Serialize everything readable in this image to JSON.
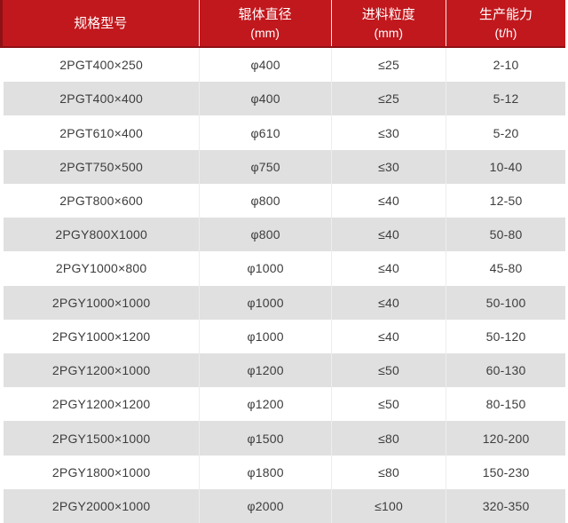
{
  "chart_data": {
    "type": "table",
    "title": "",
    "columns": [
      {
        "label": "规格型号",
        "unit": ""
      },
      {
        "label": "辊体直径",
        "unit": "(mm)"
      },
      {
        "label": "进料粒度",
        "unit": "(mm)"
      },
      {
        "label": "生产能力",
        "unit": "(t/h)"
      }
    ],
    "rows": [
      [
        "2PGT400×250",
        "φ400",
        "≤25",
        "2-10"
      ],
      [
        "2PGT400×400",
        "φ400",
        "≤25",
        "5-12"
      ],
      [
        "2PGT610×400",
        "φ610",
        "≤30",
        "5-20"
      ],
      [
        "2PGT750×500",
        "φ750",
        "≤30",
        "10-40"
      ],
      [
        "2PGT800×600",
        "φ800",
        "≤40",
        "12-50"
      ],
      [
        "2PGY800X1000",
        "φ800",
        "≤40",
        "50-80"
      ],
      [
        "2PGY1000×800",
        "φ1000",
        "≤40",
        "45-80"
      ],
      [
        "2PGY1000×1000",
        "φ1000",
        "≤40",
        "50-100"
      ],
      [
        "2PGY1000×1200",
        "φ1000",
        "≤40",
        "50-120"
      ],
      [
        "2PGY1200×1000",
        "φ1200",
        "≤50",
        "60-130"
      ],
      [
        "2PGY1200×1200",
        "φ1200",
        "≤50",
        "80-150"
      ],
      [
        "2PGY1500×1000",
        "φ1500",
        "≤80",
        "120-200"
      ],
      [
        "2PGY1800×1000",
        "φ1800",
        "≤80",
        "150-230"
      ],
      [
        "2PGY2000×1000",
        "φ2000",
        "≤100",
        "320-350"
      ]
    ]
  },
  "colors": {
    "header_bg": "#c1181d",
    "header_border": "#8e1115",
    "header_text": "#ffffff",
    "row_bg": "#ffffff",
    "row_alt_bg": "#e0e0e0",
    "cell_divider": "#ededed",
    "body_text": "#3d3d3d"
  }
}
